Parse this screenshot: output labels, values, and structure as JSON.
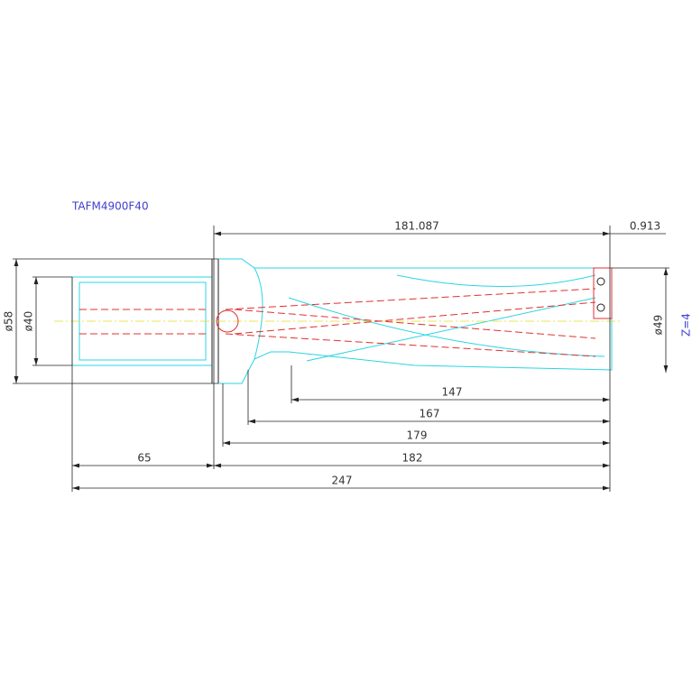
{
  "title": "TAFM4900F40",
  "dimensions": {
    "cut_length": "181.087",
    "tip_offset": "0.913",
    "shank_flange_diameter": "ø58",
    "shank_diameter": "ø40",
    "cutting_diameter": "ø49",
    "flutes": "Z=4",
    "length_147": "147",
    "length_167": "167",
    "length_179": "179",
    "shank_length": "65",
    "body_length": "182",
    "overall_length": "247"
  }
}
